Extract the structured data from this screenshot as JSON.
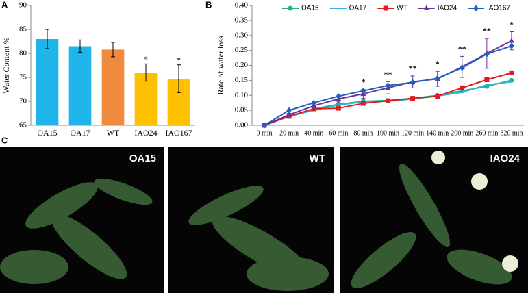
{
  "chart_data": [
    {
      "type": "bar",
      "panel": "A",
      "ylabel": "Water Content %",
      "categories": [
        "OA15",
        "OA17",
        "WT",
        "IAO24",
        "IAO167"
      ],
      "values": [
        83,
        81.5,
        80.8,
        76,
        74.7
      ],
      "errors": [
        2,
        1.3,
        1.5,
        1.8,
        2.9
      ],
      "colors": [
        "#1fb4ea",
        "#1fb4ea",
        "#f08a3c",
        "#ffc000",
        "#ffc000"
      ],
      "significance": [
        null,
        null,
        null,
        "*",
        "*"
      ],
      "ylim": [
        65,
        90
      ],
      "yticks": [
        65,
        70,
        75,
        80,
        85,
        90
      ]
    },
    {
      "type": "line",
      "panel": "B",
      "ylabel": "Rate of water loss",
      "categories": [
        "0 min",
        "20 min",
        "40 min",
        "60 min",
        "80 min",
        "100 min",
        "120 min",
        "140 min",
        "200 min",
        "260 min",
        "320 min"
      ],
      "series": [
        {
          "name": "OA15",
          "color": "#22b573",
          "marker": "circle",
          "values": [
            0,
            0.03,
            0.055,
            0.07,
            0.08,
            0.083,
            0.09,
            0.1,
            0.115,
            0.13,
            0.15
          ]
        },
        {
          "name": "OA17",
          "color": "#2bb5ea",
          "marker": "none",
          "values": [
            0,
            0.03,
            0.05,
            0.068,
            0.078,
            0.08,
            0.088,
            0.098,
            0.11,
            0.135,
            0.145
          ]
        },
        {
          "name": "WT",
          "color": "#e31a1c",
          "marker": "square",
          "values": [
            0,
            0.03,
            0.055,
            0.057,
            0.073,
            0.082,
            0.09,
            0.097,
            0.125,
            0.152,
            0.175
          ]
        },
        {
          "name": "IAO24",
          "color": "#7030a0",
          "marker": "triangle",
          "values": [
            0,
            0.035,
            0.065,
            0.088,
            0.105,
            0.125,
            0.145,
            0.155,
            0.195,
            0.24,
            0.282
          ],
          "errors": [
            0,
            0.005,
            0.01,
            0.01,
            0.015,
            0.02,
            0.02,
            0.025,
            0.035,
            0.05,
            0.03
          ]
        },
        {
          "name": "IAO167",
          "color": "#1f5fbf",
          "marker": "diamond",
          "values": [
            0,
            0.05,
            0.075,
            0.097,
            0.115,
            0.133,
            0.143,
            0.157,
            0.192,
            0.238,
            0.265
          ]
        }
      ],
      "significance": [
        null,
        null,
        null,
        null,
        "*",
        "**",
        "**",
        "*",
        "**",
        "**",
        "*"
      ],
      "ylim": [
        0,
        0.4
      ],
      "yticks": [
        {
          "value": 0,
          "label": "0.00"
        },
        {
          "value": 0.05,
          "label": "0.05"
        },
        {
          "value": 0.1,
          "label": "0.10"
        },
        {
          "value": 0.15,
          "label": "0.15"
        },
        {
          "value": 0.2,
          "label": "0.20"
        },
        {
          "value": 0.25,
          "label": "0.25"
        },
        {
          "value": 0.3,
          "label": "0.30"
        },
        {
          "value": 0.35,
          "label": "0.35"
        },
        {
          "value": 0.4,
          "label": "0.40"
        }
      ],
      "legend": "top"
    }
  ],
  "photo_panel": {
    "panel": "C",
    "labels": [
      "OA15",
      "WT",
      "IAO24"
    ]
  }
}
